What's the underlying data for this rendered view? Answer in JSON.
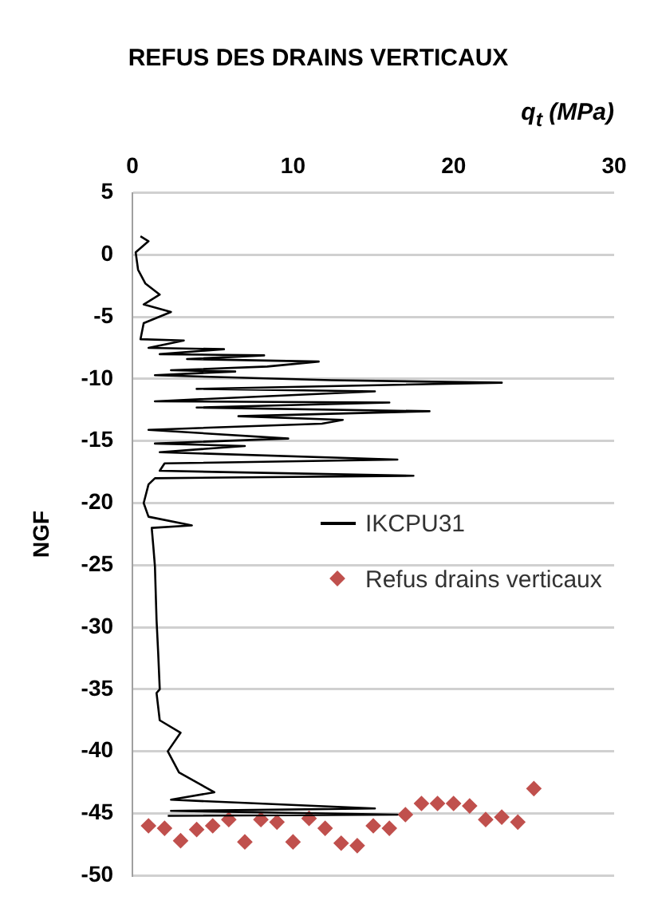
{
  "chart_data": {
    "type": "line",
    "title": "REFUS DES DRAINS VERTICAUX",
    "xlabel": "q$_{t}$ (MPa)",
    "ylabel": "NGF",
    "xlim": [
      0,
      30
    ],
    "xticks": [
      0,
      10,
      20,
      30
    ],
    "ylim": [
      -50,
      5
    ],
    "yticks": [
      5,
      0,
      -5,
      -10,
      -15,
      -20,
      -25,
      -30,
      -35,
      -40,
      -45,
      -50
    ],
    "grid": "y",
    "legend": "right",
    "series": [
      {
        "name": "IKCPU31",
        "color": "#000000",
        "marker": "none",
        "x": [
          0.5,
          1.0,
          0.2,
          0.35,
          0.8,
          1.7,
          0.7,
          2.4,
          0.7,
          0.5,
          3.2,
          1.0,
          5.7,
          1.7,
          8.2,
          3.4,
          11.6,
          8.4,
          2.4,
          6.4,
          1.4,
          12.4,
          23.0,
          4.0,
          15.1,
          1.4,
          16.0,
          4.0,
          18.5,
          6.6,
          13.1,
          11.8,
          1.0,
          9.7,
          1.4,
          7.0,
          1.7,
          16.5,
          2.0,
          1.7,
          17.5,
          1.4,
          1.0,
          0.7,
          1.0,
          3.7,
          1.2,
          1.3,
          1.4,
          1.5,
          1.6,
          1.7,
          1.5,
          1.7,
          3.0,
          2.2,
          2.9,
          5.1,
          2.4,
          15.1,
          2.4,
          16.5,
          2.2
        ],
        "values": [
          1.5,
          1.1,
          0.2,
          -1.2,
          -2.3,
          -3.2,
          -4.0,
          -4.6,
          -5.5,
          -6.8,
          -6.9,
          -7.5,
          -7.6,
          -8.0,
          -8.1,
          -8.4,
          -8.6,
          -9.0,
          -9.3,
          -9.4,
          -9.7,
          -10.1,
          -10.3,
          -10.8,
          -11.0,
          -11.8,
          -11.9,
          -12.3,
          -12.6,
          -13.0,
          -13.3,
          -13.6,
          -14.1,
          -14.8,
          -15.2,
          -15.4,
          -15.9,
          -16.5,
          -16.8,
          -17.4,
          -17.8,
          -18.0,
          -18.5,
          -20.0,
          -21.1,
          -21.8,
          -22.0,
          -23.5,
          -25.1,
          -29.4,
          -32.0,
          -35.0,
          -35.3,
          -37.5,
          -38.5,
          -40.0,
          -41.7,
          -43.3,
          -43.9,
          -44.6,
          -44.8,
          -45.1,
          -45.2
        ]
      },
      {
        "name": "Refus drains verticaux",
        "type": "scatter",
        "color": "#c0504d",
        "marker": "diamond",
        "x": [
          1,
          2,
          3,
          4,
          5,
          6,
          7,
          8,
          9,
          10,
          11,
          12,
          13,
          14,
          15,
          16,
          17,
          18,
          19,
          20,
          21,
          22,
          23,
          24,
          25
        ],
        "values": [
          -46.0,
          -46.2,
          -47.2,
          -46.3,
          -46.0,
          -45.5,
          -47.3,
          -45.5,
          -45.7,
          -47.3,
          -45.4,
          -46.2,
          -47.4,
          -47.6,
          -46.0,
          -46.2,
          -45.1,
          -44.2,
          -44.2,
          -44.2,
          -44.4,
          -45.5,
          -45.3,
          -45.7,
          -43.0
        ]
      }
    ]
  }
}
